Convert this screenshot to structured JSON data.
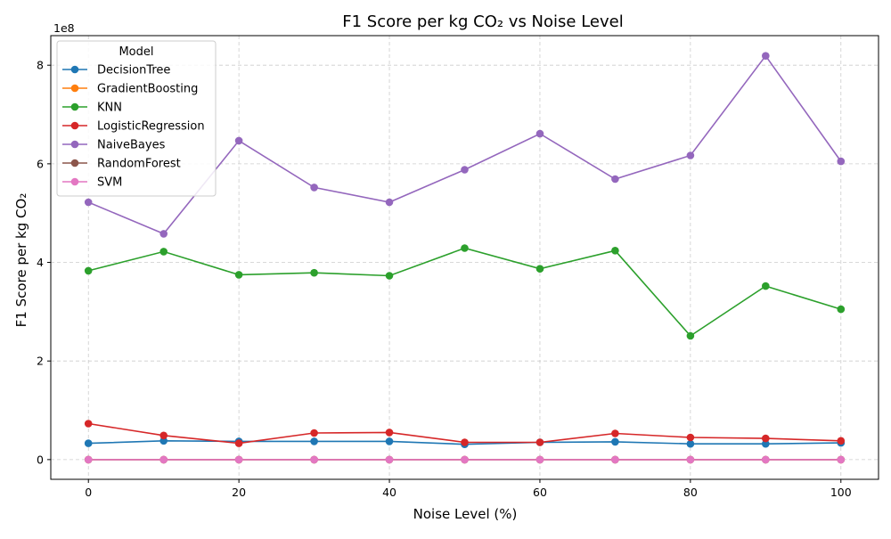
{
  "chart_data": {
    "type": "line",
    "title": "F1 Score per kg CO₂ vs Noise Level",
    "xlabel": "Noise Level (%)",
    "ylabel": "F1 Score per kg CO₂",
    "y_offset_label": "1e8",
    "y_scale_factor": 100000000,
    "x": [
      0,
      10,
      20,
      30,
      40,
      50,
      60,
      70,
      80,
      90,
      100
    ],
    "xlim": [
      -5,
      105
    ],
    "ylim": [
      -0.4,
      8.6
    ],
    "x_ticks": [
      0,
      20,
      40,
      60,
      80,
      100
    ],
    "y_ticks": [
      0,
      2,
      4,
      6,
      8
    ],
    "grid": true,
    "legend_title": "Model",
    "legend_position": "top-left",
    "series": [
      {
        "name": "DecisionTree",
        "color": "#1f77b4",
        "values": [
          0.33,
          0.38,
          0.37,
          0.37,
          0.37,
          0.31,
          0.35,
          0.36,
          0.32,
          0.32,
          0.34
        ]
      },
      {
        "name": "GradientBoosting",
        "color": "#ff7f0e",
        "values": [
          0.0,
          0.0,
          0.0,
          0.0,
          0.0,
          0.0,
          0.0,
          0.0,
          0.0,
          0.0,
          0.0
        ]
      },
      {
        "name": "KNN",
        "color": "#2ca02c",
        "values": [
          3.83,
          4.22,
          3.75,
          3.79,
          3.73,
          4.29,
          3.87,
          4.24,
          2.51,
          3.52,
          3.05
        ]
      },
      {
        "name": "LogisticRegression",
        "color": "#d62728",
        "values": [
          0.73,
          0.49,
          0.33,
          0.54,
          0.55,
          0.35,
          0.35,
          0.53,
          0.45,
          0.43,
          0.38
        ]
      },
      {
        "name": "NaiveBayes",
        "color": "#9467bd",
        "values": [
          5.22,
          4.58,
          6.47,
          5.52,
          5.22,
          5.88,
          6.61,
          5.69,
          6.17,
          8.19,
          6.05
        ]
      },
      {
        "name": "RandomForest",
        "color": "#8c564b",
        "values": [
          0.0,
          0.0,
          0.0,
          0.0,
          0.0,
          0.0,
          0.0,
          0.0,
          0.0,
          0.0,
          0.0
        ]
      },
      {
        "name": "SVM",
        "color": "#e377c2",
        "values": [
          0.0,
          0.0,
          0.0,
          0.0,
          0.0,
          0.0,
          0.0,
          0.0,
          0.0,
          0.0,
          0.0
        ]
      }
    ]
  }
}
